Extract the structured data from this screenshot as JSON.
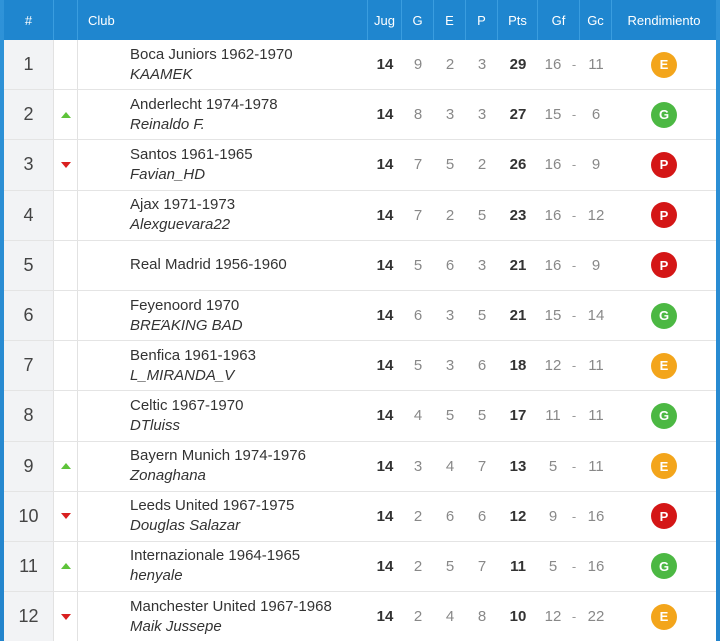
{
  "header": {
    "pos": "#",
    "club": "Club",
    "jug": "Jug",
    "g": "G",
    "e": "E",
    "p": "P",
    "pts": "Pts",
    "gf": "Gf",
    "gc": "Gc",
    "rend": "Rendimiento"
  },
  "colors": {
    "header_bg": "#1f86cf",
    "E": "#f3a51b",
    "G": "#4cb843",
    "P": "#d41616",
    "up": "#5ec33a",
    "down": "#d92020"
  },
  "rows": [
    {
      "pos": "1",
      "trend": "",
      "club": "Boca Juniors 1962-1970",
      "manager": "KAAMEK",
      "jug": "14",
      "g": "9",
      "e": "2",
      "p": "3",
      "pts": "29",
      "gf": "16",
      "sep": "-",
      "gc": "11",
      "rend": "E"
    },
    {
      "pos": "2",
      "trend": "up",
      "club": "Anderlecht 1974-1978",
      "manager": "Reinaldo F.",
      "jug": "14",
      "g": "8",
      "e": "3",
      "p": "3",
      "pts": "27",
      "gf": "15",
      "sep": "-",
      "gc": "6",
      "rend": "G"
    },
    {
      "pos": "3",
      "trend": "down",
      "club": "Santos 1961-1965",
      "manager": "Favian_HD",
      "jug": "14",
      "g": "7",
      "e": "5",
      "p": "2",
      "pts": "26",
      "gf": "16",
      "sep": "-",
      "gc": "9",
      "rend": "P"
    },
    {
      "pos": "4",
      "trend": "",
      "club": "Ajax 1971-1973",
      "manager": "Alexguevara22",
      "jug": "14",
      "g": "7",
      "e": "2",
      "p": "5",
      "pts": "23",
      "gf": "16",
      "sep": "-",
      "gc": "12",
      "rend": "P"
    },
    {
      "pos": "5",
      "trend": "",
      "club": "Real Madrid 1956-1960",
      "manager": "",
      "jug": "14",
      "g": "5",
      "e": "6",
      "p": "3",
      "pts": "21",
      "gf": "16",
      "sep": "-",
      "gc": "9",
      "rend": "P"
    },
    {
      "pos": "6",
      "trend": "",
      "club": "Feyenoord 1970",
      "manager": "BRΕΆΚΙΝG ΒΑD",
      "jug": "14",
      "g": "6",
      "e": "3",
      "p": "5",
      "pts": "21",
      "gf": "15",
      "sep": "-",
      "gc": "14",
      "rend": "G"
    },
    {
      "pos": "7",
      "trend": "",
      "club": "Benfica 1961-1963",
      "manager": "L_MIRANDA_V",
      "jug": "14",
      "g": "5",
      "e": "3",
      "p": "6",
      "pts": "18",
      "gf": "12",
      "sep": "-",
      "gc": "11",
      "rend": "E"
    },
    {
      "pos": "8",
      "trend": "",
      "club": "Celtic 1967-1970",
      "manager": "DTluiss",
      "jug": "14",
      "g": "4",
      "e": "5",
      "p": "5",
      "pts": "17",
      "gf": "11",
      "sep": "-",
      "gc": "11",
      "rend": "G"
    },
    {
      "pos": "9",
      "trend": "up",
      "club": "Bayern Munich 1974-1976",
      "manager": "Zonaghana",
      "jug": "14",
      "g": "3",
      "e": "4",
      "p": "7",
      "pts": "13",
      "gf": "5",
      "sep": "-",
      "gc": "11",
      "rend": "E"
    },
    {
      "pos": "10",
      "trend": "down",
      "club": "Leeds United 1967-1975",
      "manager": "Douglas Salazar",
      "jug": "14",
      "g": "2",
      "e": "6",
      "p": "6",
      "pts": "12",
      "gf": "9",
      "sep": "-",
      "gc": "16",
      "rend": "P"
    },
    {
      "pos": "11",
      "trend": "up",
      "club": "Internazionale 1964-1965",
      "manager": "henyale",
      "jug": "14",
      "g": "2",
      "e": "5",
      "p": "7",
      "pts": "11",
      "gf": "5",
      "sep": "-",
      "gc": "16",
      "rend": "G"
    },
    {
      "pos": "12",
      "trend": "down",
      "club": "Manchester United 1967-1968",
      "manager": "Maik Jussepe",
      "jug": "14",
      "g": "2",
      "e": "4",
      "p": "8",
      "pts": "10",
      "gf": "12",
      "sep": "-",
      "gc": "22",
      "rend": "E"
    }
  ]
}
